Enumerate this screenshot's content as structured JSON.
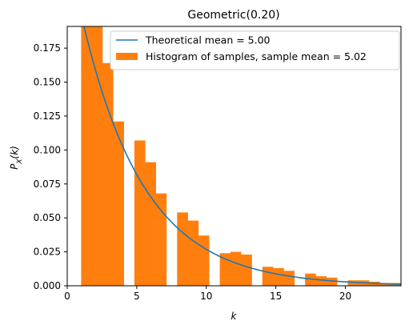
{
  "chart_data": {
    "type": "bar",
    "title": "Geometric(0.20)",
    "xlabel": "k",
    "ylabel": "P_X(k)",
    "xlim": [
      0,
      24
    ],
    "ylim": [
      0,
      0.191
    ],
    "xticks": [
      0,
      5,
      10,
      15,
      20
    ],
    "yticks": [
      0.0,
      0.025,
      0.05,
      0.075,
      0.1,
      0.125,
      0.15,
      0.175
    ],
    "ytick_labels": [
      "0.000",
      "0.025",
      "0.050",
      "0.075",
      "0.100",
      "0.125",
      "0.150",
      "0.175"
    ],
    "grid": false,
    "legend_position": "top-right",
    "series": [
      {
        "name": "Theoretical mean = 5.00",
        "type": "line",
        "color": "#1f77b4",
        "p": 0.2,
        "x_start": 1,
        "x_end": 24
      },
      {
        "name": "Histogram of samples, sample mean = 5.02",
        "type": "histogram",
        "color": "#ff7f0e",
        "bins": [
          {
            "x0": 1.0,
            "x1": 1.77,
            "value": 0.202
          },
          {
            "x0": 1.77,
            "x1": 2.53,
            "value": 0.196
          },
          {
            "x0": 2.53,
            "x1": 3.3,
            "value": 0.164
          },
          {
            "x0": 3.3,
            "x1": 4.07,
            "value": 0.121
          },
          {
            "x0": 4.07,
            "x1": 4.83,
            "value": 0
          },
          {
            "x0": 4.83,
            "x1": 5.6,
            "value": 0.107
          },
          {
            "x0": 5.6,
            "x1": 6.37,
            "value": 0.091
          },
          {
            "x0": 6.37,
            "x1": 7.13,
            "value": 0.068
          },
          {
            "x0": 7.13,
            "x1": 7.9,
            "value": 0
          },
          {
            "x0": 7.9,
            "x1": 8.67,
            "value": 0.054
          },
          {
            "x0": 8.67,
            "x1": 9.43,
            "value": 0.048
          },
          {
            "x0": 9.43,
            "x1": 10.2,
            "value": 0.037
          },
          {
            "x0": 10.2,
            "x1": 10.97,
            "value": 0
          },
          {
            "x0": 10.97,
            "x1": 11.73,
            "value": 0.024
          },
          {
            "x0": 11.73,
            "x1": 12.5,
            "value": 0.025
          },
          {
            "x0": 12.5,
            "x1": 13.27,
            "value": 0.023
          },
          {
            "x0": 13.27,
            "x1": 14.03,
            "value": 0
          },
          {
            "x0": 14.03,
            "x1": 14.8,
            "value": 0.014
          },
          {
            "x0": 14.8,
            "x1": 15.57,
            "value": 0.013
          },
          {
            "x0": 15.57,
            "x1": 16.33,
            "value": 0.011
          },
          {
            "x0": 16.33,
            "x1": 17.1,
            "value": 0
          },
          {
            "x0": 17.1,
            "x1": 17.87,
            "value": 0.009
          },
          {
            "x0": 17.87,
            "x1": 18.63,
            "value": 0.007
          },
          {
            "x0": 18.63,
            "x1": 19.4,
            "value": 0.006
          },
          {
            "x0": 19.4,
            "x1": 20.17,
            "value": 0
          },
          {
            "x0": 20.17,
            "x1": 20.93,
            "value": 0.004
          },
          {
            "x0": 20.93,
            "x1": 21.7,
            "value": 0.004
          },
          {
            "x0": 21.7,
            "x1": 22.47,
            "value": 0.003
          },
          {
            "x0": 22.47,
            "x1": 23.23,
            "value": 0.002
          },
          {
            "x0": 23.23,
            "x1": 24.0,
            "value": 0.002
          }
        ]
      }
    ]
  }
}
